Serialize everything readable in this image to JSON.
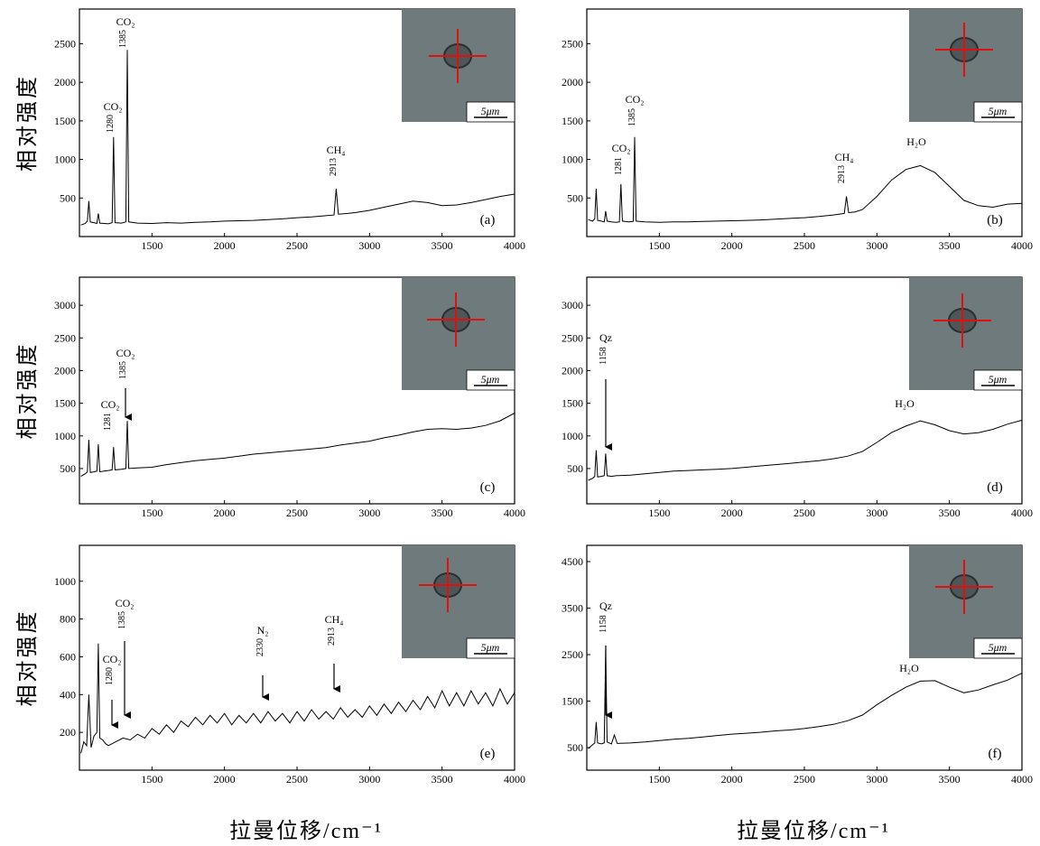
{
  "chart_data": [
    {
      "type": "line",
      "panel_label": "(a)",
      "inset_scale": "5μm",
      "y_label": "相对强度",
      "x": [
        1010,
        1040,
        1055,
        1065,
        1075,
        1100,
        1120,
        1130,
        1140,
        1170,
        1200,
        1225,
        1235,
        1245,
        1290,
        1320,
        1330,
        1340,
        1400,
        1500,
        1600,
        1700,
        1800,
        1900,
        2000,
        2100,
        2200,
        2300,
        2400,
        2500,
        2600,
        2700,
        2755,
        2770,
        2785,
        2850,
        2900,
        3000,
        3100,
        3200,
        3300,
        3400,
        3500,
        3600,
        3700,
        3800,
        3900,
        4000
      ],
      "series": [
        {
          "color": "#000000",
          "values": [
            150,
            170,
            200,
            460,
            190,
            180,
            170,
            300,
            175,
            170,
            165,
            180,
            1290,
            180,
            175,
            190,
            2420,
            190,
            175,
            170,
            180,
            175,
            185,
            190,
            200,
            205,
            210,
            220,
            230,
            245,
            255,
            270,
            280,
            620,
            290,
            300,
            310,
            340,
            380,
            420,
            460,
            440,
            400,
            410,
            440,
            480,
            520,
            550
          ]
        }
      ],
      "xlim": [
        1000,
        4000
      ],
      "xticks": [
        1500,
        2000,
        2500,
        3000,
        3500,
        4000
      ],
      "ylim": [
        0,
        2950
      ],
      "yticks": [
        500,
        1000,
        1500,
        2000,
        2500
      ],
      "annotations": [
        {
          "species": "CO₂",
          "wavenumber": 1280
        },
        {
          "species": "CO₂",
          "wavenumber": 1385
        },
        {
          "species": "CH₄",
          "wavenumber": 2913
        }
      ]
    },
    {
      "type": "line",
      "panel_label": "(b)",
      "inset_scale": "5μm",
      "x": [
        1010,
        1040,
        1055,
        1065,
        1075,
        1100,
        1120,
        1130,
        1140,
        1170,
        1200,
        1225,
        1235,
        1245,
        1290,
        1320,
        1330,
        1340,
        1400,
        1500,
        1600,
        1700,
        1800,
        1900,
        2000,
        2100,
        2200,
        2300,
        2400,
        2500,
        2600,
        2700,
        2775,
        2790,
        2805,
        2850,
        2900,
        3000,
        3100,
        3200,
        3300,
        3400,
        3500,
        3600,
        3700,
        3800,
        3900,
        4000
      ],
      "series": [
        {
          "color": "#000000",
          "values": [
            220,
            200,
            230,
            620,
            210,
            200,
            190,
            330,
            200,
            190,
            185,
            190,
            680,
            200,
            190,
            195,
            1290,
            200,
            190,
            185,
            190,
            190,
            195,
            200,
            205,
            210,
            215,
            225,
            235,
            245,
            260,
            280,
            300,
            520,
            310,
            320,
            350,
            520,
            730,
            870,
            920,
            830,
            650,
            470,
            400,
            380,
            420,
            430
          ]
        }
      ],
      "xlim": [
        1000,
        4000
      ],
      "xticks": [
        1500,
        2000,
        2500,
        3000,
        3500,
        4000
      ],
      "ylim": [
        0,
        2950
      ],
      "yticks": [
        500,
        1000,
        1500,
        2000,
        2500
      ],
      "annotations": [
        {
          "species": "CO₂",
          "wavenumber": 1281
        },
        {
          "species": "CO₂",
          "wavenumber": 1385
        },
        {
          "species": "CH₄",
          "wavenumber": 2913
        },
        {
          "species": "H₂O"
        }
      ]
    },
    {
      "type": "line",
      "panel_label": "(c)",
      "inset_scale": "5μm",
      "y_label": "相对强度",
      "x": [
        1010,
        1040,
        1055,
        1065,
        1075,
        1100,
        1120,
        1130,
        1140,
        1170,
        1200,
        1225,
        1235,
        1245,
        1290,
        1320,
        1330,
        1340,
        1400,
        1500,
        1600,
        1700,
        1800,
        1900,
        2000,
        2100,
        2200,
        2300,
        2400,
        2500,
        2600,
        2700,
        2800,
        2900,
        3000,
        3100,
        3200,
        3300,
        3400,
        3500,
        3600,
        3700,
        3800,
        3900,
        4000
      ],
      "series": [
        {
          "color": "#000000",
          "values": [
            380,
            420,
            450,
            940,
            440,
            450,
            460,
            870,
            450,
            460,
            470,
            480,
            830,
            480,
            490,
            500,
            1230,
            500,
            510,
            520,
            560,
            590,
            620,
            640,
            660,
            690,
            720,
            740,
            760,
            780,
            800,
            820,
            860,
            890,
            920,
            970,
            1010,
            1060,
            1100,
            1110,
            1100,
            1120,
            1160,
            1230,
            1350
          ]
        }
      ],
      "xlim": [
        1000,
        4000
      ],
      "xticks": [
        1500,
        2000,
        2500,
        3000,
        3500,
        4000
      ],
      "ylim": [
        -40,
        3430
      ],
      "yticks": [
        500,
        1000,
        1500,
        2000,
        2500,
        3000
      ],
      "annotations": [
        {
          "species": "CO₂",
          "wavenumber": 1281
        },
        {
          "species": "CO₂",
          "wavenumber": 1385
        }
      ]
    },
    {
      "type": "line",
      "panel_label": "(d)",
      "inset_scale": "5μm",
      "x": [
        1010,
        1040,
        1055,
        1065,
        1075,
        1100,
        1120,
        1130,
        1140,
        1170,
        1200,
        1300,
        1400,
        1500,
        1600,
        1700,
        1800,
        1900,
        2000,
        2100,
        2200,
        2300,
        2400,
        2500,
        2600,
        2700,
        2800,
        2900,
        3000,
        3100,
        3200,
        3300,
        3400,
        3500,
        3600,
        3700,
        3800,
        3900,
        4000
      ],
      "series": [
        {
          "color": "#000000",
          "values": [
            320,
            350,
            380,
            780,
            370,
            380,
            390,
            730,
            390,
            380,
            390,
            400,
            420,
            440,
            460,
            470,
            480,
            490,
            500,
            520,
            540,
            560,
            580,
            600,
            620,
            650,
            690,
            760,
            900,
            1050,
            1150,
            1230,
            1170,
            1080,
            1030,
            1050,
            1100,
            1180,
            1240
          ]
        }
      ],
      "xlim": [
        1000,
        4000
      ],
      "xticks": [
        1500,
        2000,
        2500,
        3000,
        3500,
        4000
      ],
      "ylim": [
        -40,
        3430
      ],
      "yticks": [
        500,
        1000,
        1500,
        2000,
        2500,
        3000
      ],
      "annotations": [
        {
          "species": "Qz",
          "wavenumber": 1158
        },
        {
          "species": "H₂O"
        }
      ]
    },
    {
      "type": "line",
      "panel_label": "(e)",
      "inset_scale": "5μm",
      "y_label": "相对强度",
      "x_label": "拉曼位移/cm⁻¹",
      "x": [
        1010,
        1030,
        1050,
        1065,
        1080,
        1100,
        1120,
        1130,
        1140,
        1160,
        1180,
        1200,
        1250,
        1300,
        1350,
        1400,
        1450,
        1500,
        1550,
        1600,
        1650,
        1700,
        1750,
        1800,
        1850,
        1900,
        1950,
        2000,
        2050,
        2100,
        2150,
        2200,
        2250,
        2300,
        2350,
        2400,
        2450,
        2500,
        2550,
        2600,
        2650,
        2700,
        2750,
        2800,
        2850,
        2900,
        2950,
        3000,
        3050,
        3100,
        3150,
        3200,
        3250,
        3300,
        3350,
        3400,
        3450,
        3500,
        3550,
        3600,
        3650,
        3700,
        3750,
        3800,
        3850,
        3900,
        3950,
        4000
      ],
      "series": [
        {
          "color": "#000000",
          "values": [
            90,
            150,
            130,
            400,
            120,
            180,
            200,
            670,
            170,
            160,
            140,
            130,
            150,
            170,
            160,
            190,
            170,
            220,
            190,
            240,
            200,
            260,
            230,
            280,
            240,
            290,
            250,
            300,
            240,
            290,
            250,
            300,
            250,
            310,
            260,
            300,
            250,
            310,
            260,
            320,
            270,
            310,
            270,
            330,
            280,
            320,
            280,
            340,
            290,
            350,
            300,
            360,
            310,
            370,
            320,
            390,
            330,
            420,
            340,
            410,
            340,
            420,
            350,
            410,
            340,
            430,
            350,
            410
          ]
        }
      ],
      "xlim": [
        1000,
        4000
      ],
      "xticks": [
        1500,
        2000,
        2500,
        3000,
        3500,
        4000
      ],
      "ylim": [
        0,
        1190
      ],
      "yticks": [
        200,
        400,
        600,
        800,
        1000
      ],
      "annotations": [
        {
          "species": "CO₂",
          "wavenumber": 1280
        },
        {
          "species": "CO₂",
          "wavenumber": 1385
        },
        {
          "species": "N₂",
          "wavenumber": 2330
        },
        {
          "species": "CH₄",
          "wavenumber": 2913
        }
      ]
    },
    {
      "type": "line",
      "panel_label": "(f)",
      "inset_scale": "5μm",
      "x_label": "拉曼位移/cm⁻¹",
      "x": [
        1010,
        1040,
        1055,
        1065,
        1075,
        1100,
        1120,
        1130,
        1140,
        1170,
        1190,
        1210,
        1300,
        1400,
        1500,
        1600,
        1700,
        1800,
        1900,
        2000,
        2100,
        2200,
        2300,
        2400,
        2500,
        2600,
        2700,
        2800,
        2900,
        3000,
        3100,
        3200,
        3300,
        3400,
        3500,
        3600,
        3700,
        3800,
        3900,
        4000
      ],
      "series": [
        {
          "color": "#000000",
          "values": [
            480,
            560,
            600,
            1050,
            600,
            580,
            600,
            2620,
            620,
            580,
            770,
            590,
            600,
            620,
            650,
            680,
            700,
            730,
            760,
            790,
            810,
            830,
            860,
            880,
            910,
            950,
            1000,
            1080,
            1200,
            1420,
            1620,
            1800,
            1930,
            1940,
            1800,
            1680,
            1740,
            1850,
            1950,
            2100
          ]
        }
      ],
      "xlim": [
        1000,
        4000
      ],
      "xticks": [
        1500,
        2000,
        2500,
        3000,
        3500,
        4000
      ],
      "ylim": [
        15,
        4850
      ],
      "yticks": [
        500,
        1500,
        2500,
        3500,
        4500
      ],
      "annotations": [
        {
          "species": "Qz",
          "wavenumber": 1158
        },
        {
          "species": "H₂O"
        }
      ]
    }
  ]
}
